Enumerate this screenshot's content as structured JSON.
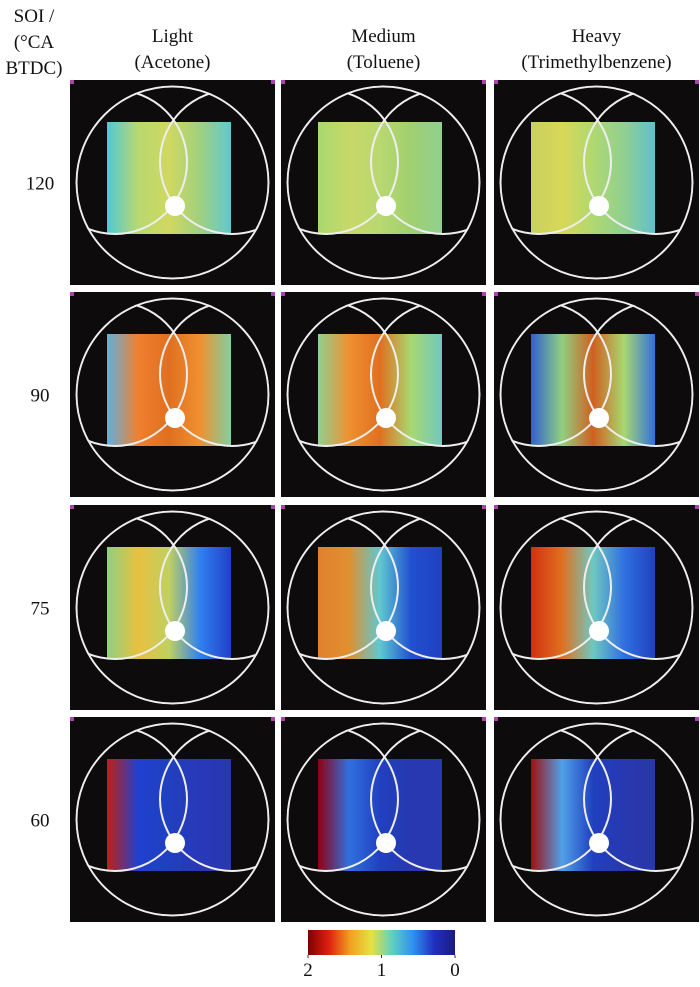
{
  "header": {
    "row_label": [
      "SOI /",
      "(°CA",
      "BTDC)"
    ]
  },
  "columns": [
    {
      "name": "Light",
      "fuel": "(Acetone)"
    },
    {
      "name": "Medium",
      "fuel": "(Toluene)"
    },
    {
      "name": "Heavy",
      "fuel": "(Trimethylbenzene)"
    }
  ],
  "rows": [
    120,
    90,
    75,
    60
  ],
  "colorbar": {
    "clim": [
      2,
      0
    ],
    "ticks": [
      2,
      1,
      0
    ],
    "colors": [
      "#7f0000",
      "#e02010",
      "#f0a020",
      "#e8e040",
      "#60d0c0",
      "#3090f0",
      "#2030c0",
      "#1a1a80"
    ]
  }
}
